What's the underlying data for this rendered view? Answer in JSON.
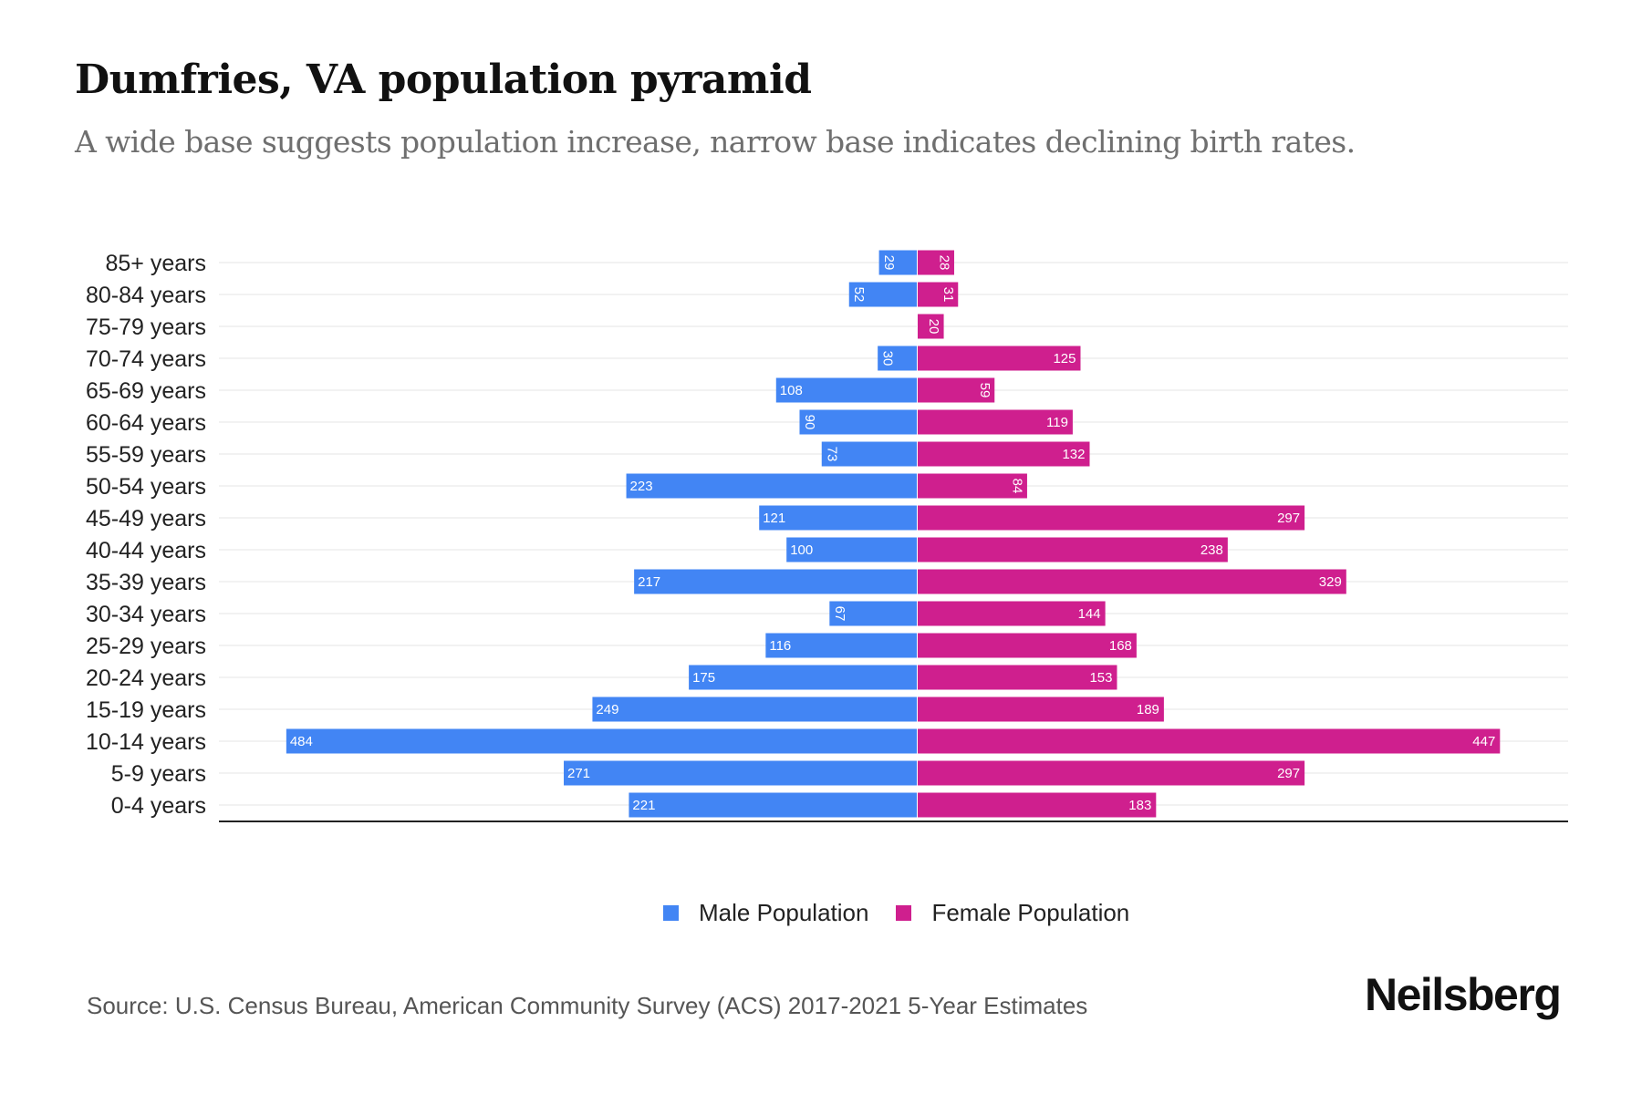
{
  "header": {
    "title": "Dumfries, VA population pyramid",
    "subtitle": "A wide base suggests population increase, narrow base indicates declining birth rates."
  },
  "colors": {
    "male": "#4285F4",
    "female": "#CF1F8E",
    "gridline": "#eeeeee",
    "axis": "#222222"
  },
  "chart_data": {
    "type": "bar",
    "orientation": "horizontal-pyramid",
    "title": "Dumfries, VA population pyramid",
    "subtitle": "A wide base suggests population increase, narrow base indicates declining birth rates.",
    "categories": [
      "85+ years",
      "80-84 years",
      "75-79 years",
      "70-74 years",
      "65-69 years",
      "60-64 years",
      "55-59 years",
      "50-54 years",
      "45-49 years",
      "40-44 years",
      "35-39 years",
      "30-34 years",
      "25-29 years",
      "20-24 years",
      "15-19 years",
      "10-14 years",
      "5-9 years",
      "0-4 years"
    ],
    "series": [
      {
        "name": "Male Population",
        "side": "left",
        "values": [
          29,
          52,
          0,
          30,
          108,
          90,
          73,
          223,
          121,
          100,
          217,
          67,
          116,
          175,
          249,
          484,
          271,
          221
        ]
      },
      {
        "name": "Female Population",
        "side": "right",
        "values": [
          28,
          31,
          20,
          125,
          59,
          119,
          132,
          84,
          297,
          238,
          329,
          144,
          168,
          153,
          189,
          447,
          297,
          183
        ]
      }
    ],
    "xlim": [
      -520,
      520
    ],
    "xlabel": "",
    "ylabel": "",
    "grid": true,
    "data_labels": true,
    "legend_position": "bottom-center"
  },
  "legend": {
    "items": [
      {
        "label": "Male Population",
        "color": "#4285F4"
      },
      {
        "label": "Female Population",
        "color": "#CF1F8E"
      }
    ]
  },
  "footer": {
    "source": "Source: U.S. Census Bureau, American Community Survey (ACS) 2017-2021 5-Year Estimates",
    "brand": "Neilsberg"
  }
}
